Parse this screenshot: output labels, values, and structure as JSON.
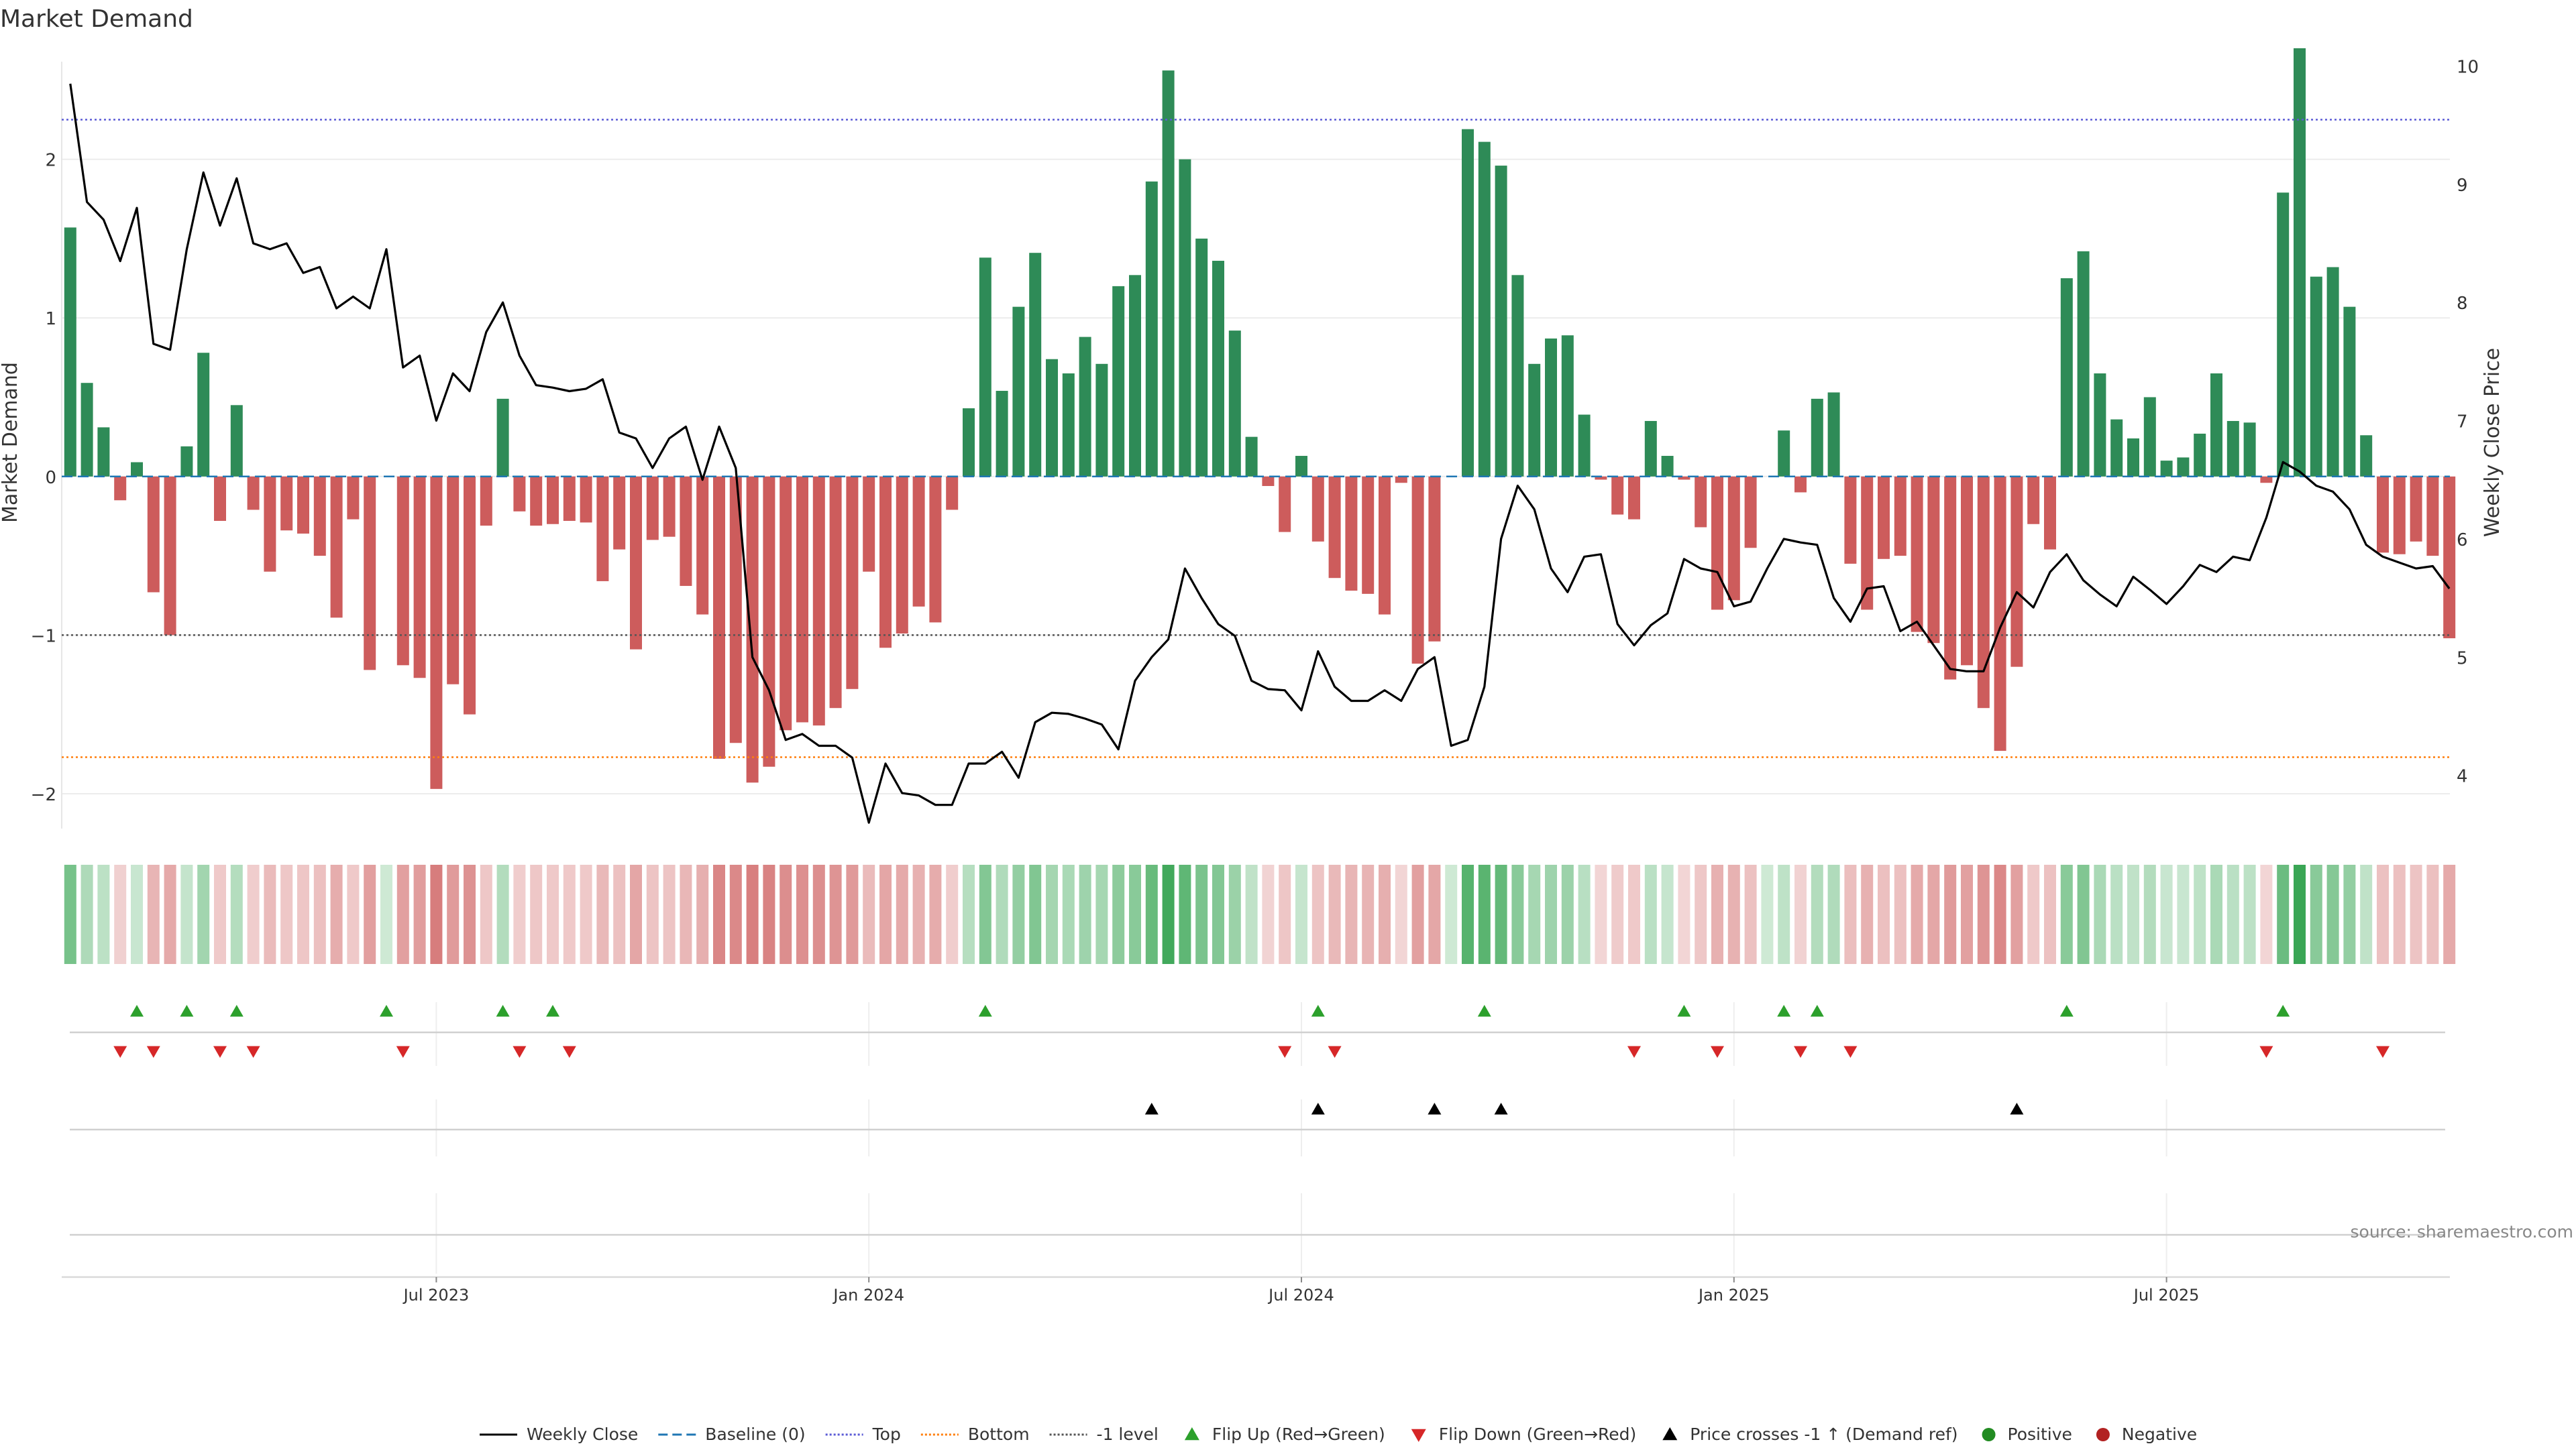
{
  "chart_data": {
    "type": "bar",
    "title": "Market Demand",
    "ylabel_left": "Market Demand",
    "ylabel_right": "Weekly Close Price",
    "source": "source: sharemaestro.com",
    "ylim_left": [
      -2.22,
      2.7
    ],
    "ylim_right": [
      3.55,
      10.15
    ],
    "yticks_left": [
      {
        "value": 2,
        "label": "2"
      },
      {
        "value": 1,
        "label": "1"
      },
      {
        "value": 0,
        "label": "0"
      },
      {
        "value": -1,
        "label": "−1"
      },
      {
        "value": -2,
        "label": "−2"
      }
    ],
    "yticks_right": [
      {
        "value": 10,
        "label": "10"
      },
      {
        "value": 9,
        "label": "9"
      },
      {
        "value": 8,
        "label": "8"
      },
      {
        "value": 7,
        "label": "7"
      },
      {
        "value": 6,
        "label": "6"
      },
      {
        "value": 5,
        "label": "5"
      },
      {
        "value": 4,
        "label": "4"
      }
    ],
    "x_start": "2023-03-06",
    "week_count": 144,
    "xticks": [
      {
        "week": 22,
        "label": "Jul 2023"
      },
      {
        "week": 48,
        "label": "Jan 2024"
      },
      {
        "week": 74,
        "label": "Jul 2024"
      },
      {
        "week": 100,
        "label": "Jan 2025"
      },
      {
        "week": 126,
        "label": "Jul 2025"
      }
    ],
    "levels": {
      "top": 2.25,
      "bottom": -1.77,
      "minus_one": -1,
      "baseline": 0
    },
    "demand": [
      1.57,
      0.59,
      0.31,
      -0.15,
      0.09,
      -0.73,
      -1.0,
      0.19,
      0.78,
      -0.28,
      0.45,
      -0.21,
      -0.6,
      -0.34,
      -0.36,
      -0.5,
      -0.89,
      -0.27,
      -1.22,
      0.0,
      -1.19,
      -1.27,
      -1.97,
      -1.31,
      -1.5,
      -0.31,
      0.49,
      -0.22,
      -0.31,
      -0.3,
      -0.28,
      -0.29,
      -0.66,
      -0.46,
      -1.09,
      -0.4,
      -0.38,
      -0.69,
      -0.87,
      -1.78,
      -1.68,
      -1.93,
      -1.83,
      -1.6,
      -1.55,
      -1.57,
      -1.46,
      -1.34,
      -0.6,
      -1.08,
      -0.99,
      -0.82,
      -0.92,
      -0.21,
      0.43,
      1.38,
      0.54,
      1.07,
      1.41,
      0.74,
      0.65,
      0.88,
      0.71,
      1.2,
      1.27,
      1.86,
      2.56,
      2.0,
      1.5,
      1.36,
      0.92,
      0.25,
      -0.06,
      -0.35,
      0.13,
      -0.41,
      -0.64,
      -0.72,
      -0.74,
      -0.87,
      -0.04,
      -1.18,
      -1.04,
      0.0,
      2.19,
      2.11,
      1.96,
      1.27,
      0.71,
      0.87,
      0.89,
      0.39,
      -0.02,
      -0.24,
      -0.27,
      0.35,
      0.13,
      -0.02,
      -0.32,
      -0.84,
      -0.78,
      -0.45,
      0.0,
      0.29,
      -0.1,
      0.49,
      0.53,
      -0.55,
      -0.84,
      -0.52,
      -0.5,
      -0.98,
      -1.05,
      -1.28,
      -1.19,
      -1.46,
      -1.73,
      -1.2,
      -0.3,
      -0.46,
      1.25,
      1.42,
      0.65,
      0.36,
      0.24,
      0.5,
      0.1,
      0.12,
      0.27,
      0.65,
      0.35,
      0.34,
      -0.04,
      1.79,
      2.7,
      1.26,
      1.32,
      1.07,
      0.26,
      -0.48,
      -0.49,
      -0.41,
      -0.5,
      -1.02
    ],
    "series": [
      {
        "name": "Weekly Close",
        "weeks": [
          0,
          1,
          2,
          3,
          4,
          5,
          6,
          7,
          8,
          9,
          10,
          11,
          12,
          13,
          14,
          15,
          16,
          17,
          18,
          19,
          20,
          21,
          22,
          23,
          24,
          25,
          26,
          27,
          28,
          29,
          30,
          31,
          32,
          33,
          34,
          35,
          36,
          37,
          38,
          39,
          40,
          41,
          42,
          43,
          44,
          45,
          46,
          47,
          48,
          49,
          50,
          51,
          52,
          53,
          54,
          55,
          56,
          57,
          58,
          59,
          60,
          61,
          62,
          63,
          64,
          65,
          66,
          67,
          68,
          69,
          70,
          71,
          72,
          73,
          74,
          75,
          76,
          77,
          78,
          79,
          80,
          81,
          82,
          83,
          84,
          85,
          86,
          87,
          88,
          89,
          90,
          91,
          92,
          93,
          94,
          95,
          96,
          97,
          98,
          99,
          100,
          101,
          102,
          103,
          104,
          105,
          106,
          107,
          108,
          109,
          110,
          111,
          112,
          113,
          114,
          115,
          116,
          117,
          118,
          119,
          120,
          121,
          122,
          123,
          124,
          125,
          126,
          127,
          128,
          129,
          130,
          131,
          132,
          133,
          134,
          135,
          136,
          137,
          138,
          139,
          140,
          141,
          142,
          143
        ],
        "values": [
          9.85,
          8.85,
          8.7,
          8.35,
          8.8,
          7.65,
          7.6,
          8.45,
          9.1,
          8.65,
          9.05,
          8.5,
          8.45,
          8.5,
          8.25,
          8.3,
          7.95,
          8.05,
          7.95,
          8.45,
          7.45,
          7.55,
          7.0,
          7.4,
          7.25,
          7.75,
          8.0,
          7.55,
          7.3,
          7.28,
          7.25,
          7.27,
          7.35,
          6.9,
          6.85,
          6.6,
          6.85,
          6.95,
          6.5,
          6.95,
          6.6,
          5.0,
          4.72,
          4.3,
          4.35,
          4.25,
          4.25,
          4.15,
          3.6,
          4.1,
          3.85,
          3.83,
          3.75,
          3.75,
          4.1,
          4.1,
          4.2,
          3.98,
          4.45,
          4.53,
          4.52,
          4.48,
          4.43,
          4.22,
          4.8,
          5.0,
          5.15,
          5.75,
          5.5,
          5.28,
          5.18,
          4.8,
          4.73,
          4.72,
          4.55,
          5.05,
          4.75,
          4.63,
          4.63,
          4.72,
          4.63,
          4.9,
          5.0,
          4.25,
          4.3,
          4.75,
          6.0,
          6.45,
          6.25,
          5.75,
          5.55,
          5.85,
          5.87,
          5.28,
          5.1,
          5.27,
          5.37,
          5.83,
          5.75,
          5.72,
          5.43,
          5.47,
          5.75,
          6.0,
          5.97,
          5.95,
          5.5,
          5.3,
          5.58,
          5.6,
          5.22,
          5.3,
          5.1,
          4.9,
          4.88,
          4.88,
          5.25,
          5.55,
          5.42,
          5.72,
          5.87,
          5.65,
          5.53,
          5.43,
          5.68,
          5.57,
          5.45,
          5.6,
          5.78,
          5.72,
          5.85,
          5.82,
          6.18,
          6.65,
          6.57,
          6.45,
          6.4,
          6.25,
          5.95,
          5.85,
          5.8,
          5.75,
          5.77,
          5.58
        ]
      }
    ],
    "flip_up_weeks": [
      4,
      7,
      10,
      19,
      26,
      29,
      55,
      75,
      85,
      97,
      103,
      105,
      120,
      133
    ],
    "flip_down_weeks": [
      3,
      5,
      9,
      11,
      20,
      27,
      30,
      73,
      76,
      94,
      99,
      104,
      107,
      132,
      139
    ],
    "cross_up_weeks": [
      65,
      75,
      82,
      86,
      117
    ],
    "legend_position": "bottom-center"
  },
  "legend": [
    {
      "key": "weekly-close",
      "label": "Weekly Close",
      "symbol": "line",
      "color": "#000000",
      "dash": ""
    },
    {
      "key": "baseline",
      "label": "Baseline (0)",
      "symbol": "line",
      "color": "#1f77b4",
      "dash": "14,7"
    },
    {
      "key": "top",
      "label": "Top",
      "symbol": "line",
      "color": "#5b5bd6",
      "dash": "3,3"
    },
    {
      "key": "bottom",
      "label": "Bottom",
      "symbol": "line",
      "color": "#ff7f0e",
      "dash": "3,3"
    },
    {
      "key": "minus-one",
      "label": "-1 level",
      "symbol": "line",
      "color": "#555555",
      "dash": "3,3"
    },
    {
      "key": "flip-up",
      "label": "Flip Up (Red→Green)",
      "symbol": "tri-up",
      "color": "#2ca02c"
    },
    {
      "key": "flip-down",
      "label": "Flip Down (Green→Red)",
      "symbol": "tri-down",
      "color": "#d62728"
    },
    {
      "key": "cross-up",
      "label": "Price crosses -1 ↑ (Demand ref)",
      "symbol": "tri-up",
      "color": "#000000"
    },
    {
      "key": "positive",
      "label": "Positive",
      "symbol": "dot",
      "color": "#228b22"
    },
    {
      "key": "negative",
      "label": "Negative",
      "symbol": "dot",
      "color": "#b22222"
    }
  ],
  "colors": {
    "positive_bar": "#2e8b57",
    "negative_bar": "#cd5c5c",
    "price_line": "#000000",
    "top_line": "#5b5bd6",
    "bottom_line": "#ff7f0e",
    "minus_one_line": "#555555",
    "baseline": "#1f77b4",
    "strip_green": "#3aa655",
    "strip_red": "#cd5c5c",
    "flip_up": "#2ca02c",
    "flip_down": "#d62728",
    "cross_up": "#000000"
  }
}
